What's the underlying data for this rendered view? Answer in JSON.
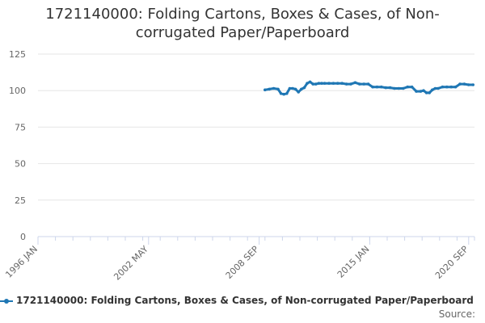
{
  "chart_data": {
    "type": "line",
    "title_lines": [
      "1721140000: Folding Cartons, Boxes & Cases, of Non-",
      "corrugated Paper/Paperboard"
    ],
    "xlabel": "",
    "ylabel": "",
    "ylim": [
      0,
      125
    ],
    "yticks": [
      0,
      25,
      50,
      75,
      100,
      125
    ],
    "xlim": [
      "1996-01",
      "2021-01"
    ],
    "xticks": [
      {
        "label": "1996 JAN",
        "date": "1996-01"
      },
      {
        "label": "2002 MAY",
        "date": "2002-05"
      },
      {
        "label": "2008 SEP",
        "date": "2008-09"
      },
      {
        "label": "2015 JAN",
        "date": "2015-01"
      },
      {
        "label": "2020 SEP",
        "date": "2020-09"
      }
    ],
    "grid": true,
    "legend_position": "bottom",
    "series": [
      {
        "name": "1721140000: Folding Cartons, Boxes & Cases, of Non-corrugated Paper/Paperboard",
        "color": "#1f77b4",
        "x": [
          "2009-01",
          "2009-04",
          "2009-07",
          "2009-10",
          "2009-12",
          "2010-02",
          "2010-04",
          "2010-06",
          "2010-08",
          "2010-10",
          "2010-12",
          "2011-02",
          "2011-04",
          "2011-06",
          "2011-08",
          "2011-10",
          "2011-12",
          "2012-02",
          "2012-04",
          "2012-06",
          "2012-09",
          "2012-12",
          "2013-03",
          "2013-06",
          "2013-09",
          "2013-12",
          "2014-03",
          "2014-06",
          "2014-09",
          "2014-12",
          "2015-03",
          "2015-06",
          "2015-09",
          "2015-12",
          "2016-03",
          "2016-06",
          "2016-09",
          "2016-12",
          "2017-03",
          "2017-06",
          "2017-09",
          "2017-12",
          "2018-02",
          "2018-04",
          "2018-06",
          "2018-08",
          "2018-10",
          "2018-12",
          "2019-03",
          "2019-06",
          "2019-09",
          "2019-12",
          "2020-03",
          "2020-06",
          "2020-09",
          "2020-12"
        ],
        "values": [
          100.5,
          101,
          101.5,
          101,
          98,
          97.5,
          98,
          101.5,
          101.5,
          101,
          99,
          101,
          102,
          105,
          106,
          104.5,
          104.5,
          105,
          105,
          105,
          105,
          105,
          105,
          105,
          104.5,
          104.5,
          105.5,
          104.5,
          104.5,
          104.5,
          102.5,
          102.5,
          102.5,
          102,
          102,
          101.5,
          101.5,
          101.5,
          102.5,
          102.5,
          99.5,
          99.5,
          100,
          98.5,
          98.5,
          100.5,
          101.5,
          101.5,
          102.5,
          102.5,
          102.5,
          102.5,
          104.5,
          104.5,
          104,
          104
        ]
      }
    ],
    "source_label": "Source:"
  }
}
